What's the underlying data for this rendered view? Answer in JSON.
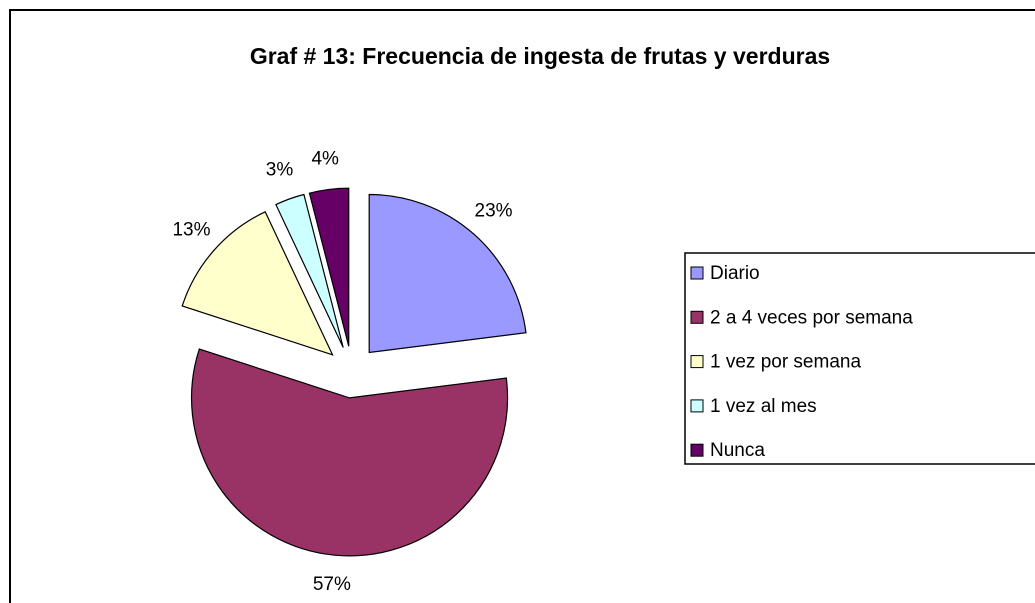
{
  "chart_data": {
    "type": "pie",
    "title": "Graf # 13: Frecuencia de ingesta de frutas y verduras",
    "categories": [
      "Diario",
      "2 a 4 veces por semana",
      "1 vez por semana",
      "1 vez al mes",
      "Nunca"
    ],
    "values": [
      23,
      57,
      13,
      3,
      4
    ],
    "value_labels": [
      "23%",
      "57%",
      "13%",
      "3%",
      "4%"
    ],
    "colors": [
      "#9999ff",
      "#993366",
      "#ffffcc",
      "#ccffff",
      "#660066"
    ],
    "legend": "right"
  }
}
